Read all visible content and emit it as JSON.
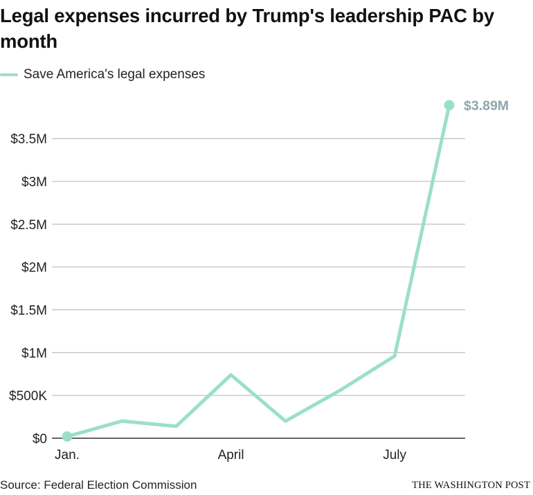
{
  "title": "Legal expenses incurred by Trump's leadership PAC by month",
  "legend": {
    "label": "Save America's legal expenses"
  },
  "colors": {
    "series": "#9bdfcb",
    "end_label": "#8fa5ad",
    "gridline": "#bdbdbd",
    "baseline": "#333333"
  },
  "chart_data": {
    "type": "line",
    "title": "Legal expenses incurred by Trump's leadership PAC by month",
    "xlabel": "",
    "ylabel": "",
    "x": [
      1,
      2,
      3,
      4,
      5,
      6,
      7,
      8
    ],
    "x_ticks": [
      {
        "value": 1,
        "label": "Jan."
      },
      {
        "value": 4,
        "label": "April"
      },
      {
        "value": 7,
        "label": "July"
      }
    ],
    "series": [
      {
        "name": "Save America's legal expenses",
        "values": [
          20000,
          200000,
          140000,
          740000,
          200000,
          560000,
          960000,
          3890000
        ]
      }
    ],
    "y_ticks": [
      {
        "value": 0,
        "label": "$0"
      },
      {
        "value": 500000,
        "label": "$500K"
      },
      {
        "value": 1000000,
        "label": "$1M"
      },
      {
        "value": 1500000,
        "label": "$1.5M"
      },
      {
        "value": 2000000,
        "label": "$2M"
      },
      {
        "value": 2500000,
        "label": "$2.5M"
      },
      {
        "value": 3000000,
        "label": "$3M"
      },
      {
        "value": 3500000,
        "label": "$3.5M"
      }
    ],
    "ylim": [
      0,
      3890000
    ],
    "grid": true,
    "end_label": "$3.89M",
    "markers": "first-and-last"
  },
  "footer": {
    "source": "Source: Federal Election Commission",
    "publisher": "THE WASHINGTON POST"
  }
}
